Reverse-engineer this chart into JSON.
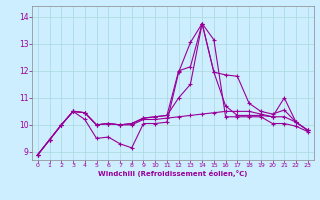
{
  "title": "",
  "xlabel": "Windchill (Refroidissement éolien,°C)",
  "background_color": "#cceeff",
  "line_color": "#990099",
  "xlim": [
    -0.5,
    23.5
  ],
  "ylim": [
    8.7,
    14.4
  ],
  "xticks": [
    0,
    1,
    2,
    3,
    4,
    5,
    6,
    7,
    8,
    9,
    10,
    11,
    12,
    13,
    14,
    15,
    16,
    17,
    18,
    19,
    20,
    21,
    22,
    23
  ],
  "yticks": [
    9,
    10,
    11,
    12,
    13,
    14
  ],
  "series": [
    [
      8.9,
      9.45,
      10.0,
      10.5,
      10.2,
      9.5,
      9.55,
      9.3,
      9.15,
      10.05,
      10.05,
      10.1,
      11.95,
      13.05,
      13.75,
      13.15,
      10.3,
      10.3,
      10.3,
      10.3,
      10.05,
      10.05,
      9.95,
      9.75
    ],
    [
      8.9,
      9.45,
      10.0,
      10.5,
      10.45,
      10.0,
      10.05,
      10.0,
      10.0,
      10.2,
      10.2,
      10.25,
      10.3,
      10.35,
      10.4,
      10.45,
      10.5,
      10.5,
      10.5,
      10.4,
      10.3,
      10.3,
      10.1,
      9.8
    ],
    [
      8.9,
      9.45,
      10.0,
      10.5,
      10.45,
      10.0,
      10.05,
      10.0,
      10.05,
      10.25,
      10.3,
      10.35,
      11.0,
      11.5,
      13.75,
      11.95,
      11.85,
      11.8,
      10.8,
      10.5,
      10.4,
      10.55,
      10.1,
      9.8
    ],
    [
      8.9,
      9.45,
      10.0,
      10.5,
      10.45,
      10.0,
      10.05,
      10.0,
      10.05,
      10.25,
      10.3,
      10.35,
      12.0,
      12.15,
      13.75,
      11.95,
      10.7,
      10.35,
      10.35,
      10.35,
      10.3,
      11.0,
      10.1,
      9.8
    ]
  ]
}
